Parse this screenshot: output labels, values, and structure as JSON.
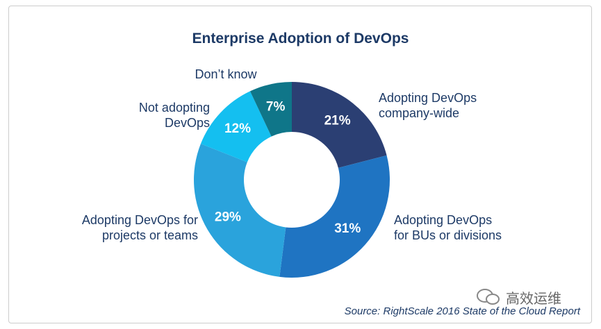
{
  "chart_data": {
    "type": "pie",
    "title": "Enterprise Adoption of DevOps",
    "categories": [
      "Adopting DevOps\ncompany-wide",
      "Adopting DevOps\nfor BUs or divisions",
      "Adopting DevOps for\nprojects or teams",
      "Not adopting\nDevOps",
      "Don’t know"
    ],
    "values": [
      21,
      31,
      29,
      12,
      7
    ],
    "value_labels": [
      "21%",
      "31%",
      "29%",
      "12%",
      "7%"
    ],
    "colors": [
      "#2b3f73",
      "#1f74c2",
      "#2aa3dc",
      "#14bff0",
      "#0f7689"
    ],
    "donut": true,
    "source": "Source: RightScale 2016 State of the Cloud Report"
  },
  "watermark": "高效运维"
}
